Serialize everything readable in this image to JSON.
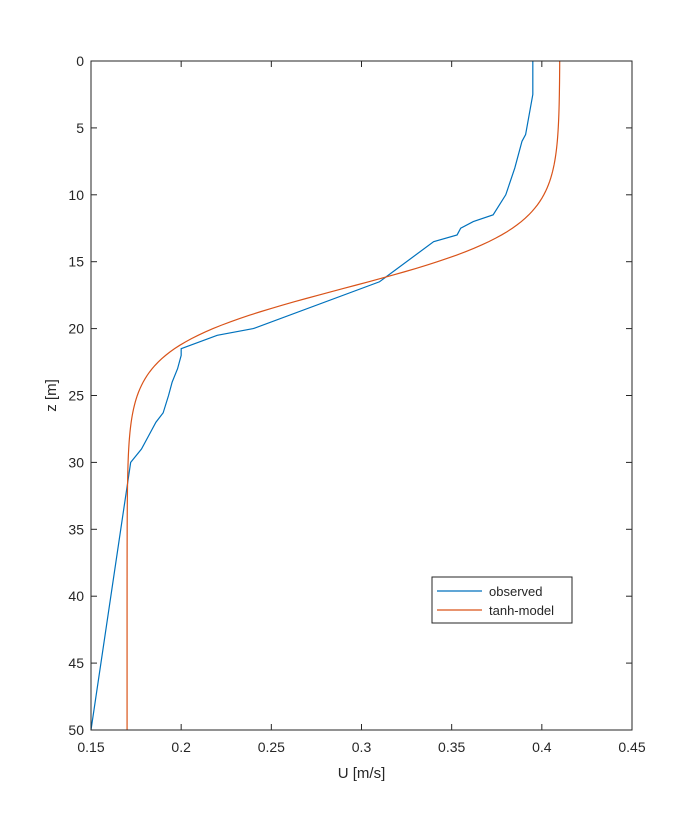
{
  "chart_data": {
    "type": "line",
    "title": "",
    "xlabel": "U [m/s]",
    "ylabel": "z [m]",
    "xlim": [
      0.15,
      0.45
    ],
    "ylim": [
      0,
      50
    ],
    "y_reversed": true,
    "grid": false,
    "legend_position": "lower-right",
    "xticks": [
      0.15,
      0.2,
      0.25,
      0.3,
      0.35,
      0.4,
      0.45
    ],
    "xtick_labels": [
      "0.15",
      "0.2",
      "0.25",
      "0.3",
      "0.35",
      "0.4",
      "0.45"
    ],
    "yticks": [
      0,
      5,
      10,
      15,
      20,
      25,
      30,
      35,
      40,
      45,
      50
    ],
    "ytick_labels": [
      "0",
      "5",
      "10",
      "15",
      "20",
      "25",
      "30",
      "35",
      "40",
      "45",
      "50"
    ],
    "series": [
      {
        "name": "observed",
        "color": "#0072BD",
        "points": [
          [
            0.395,
            0
          ],
          [
            0.395,
            2.5
          ],
          [
            0.391,
            5.5
          ],
          [
            0.389,
            6
          ],
          [
            0.385,
            8
          ],
          [
            0.38,
            10
          ],
          [
            0.373,
            11.5
          ],
          [
            0.362,
            12
          ],
          [
            0.355,
            12.5
          ],
          [
            0.353,
            13
          ],
          [
            0.34,
            13.5
          ],
          [
            0.31,
            16.5
          ],
          [
            0.24,
            20
          ],
          [
            0.22,
            20.5
          ],
          [
            0.2,
            21.5
          ],
          [
            0.2,
            22
          ],
          [
            0.198,
            23
          ],
          [
            0.195,
            24
          ],
          [
            0.193,
            25
          ],
          [
            0.19,
            26.3
          ],
          [
            0.186,
            27
          ],
          [
            0.182,
            28
          ],
          [
            0.178,
            29
          ],
          [
            0.172,
            30
          ],
          [
            0.15,
            50
          ]
        ]
      },
      {
        "name": "tanh-model",
        "color": "#D95319",
        "model": {
          "u0": 0.29,
          "du": 0.12,
          "z0": 17,
          "h": 4.3
        },
        "z_range": [
          0,
          50
        ]
      }
    ]
  }
}
